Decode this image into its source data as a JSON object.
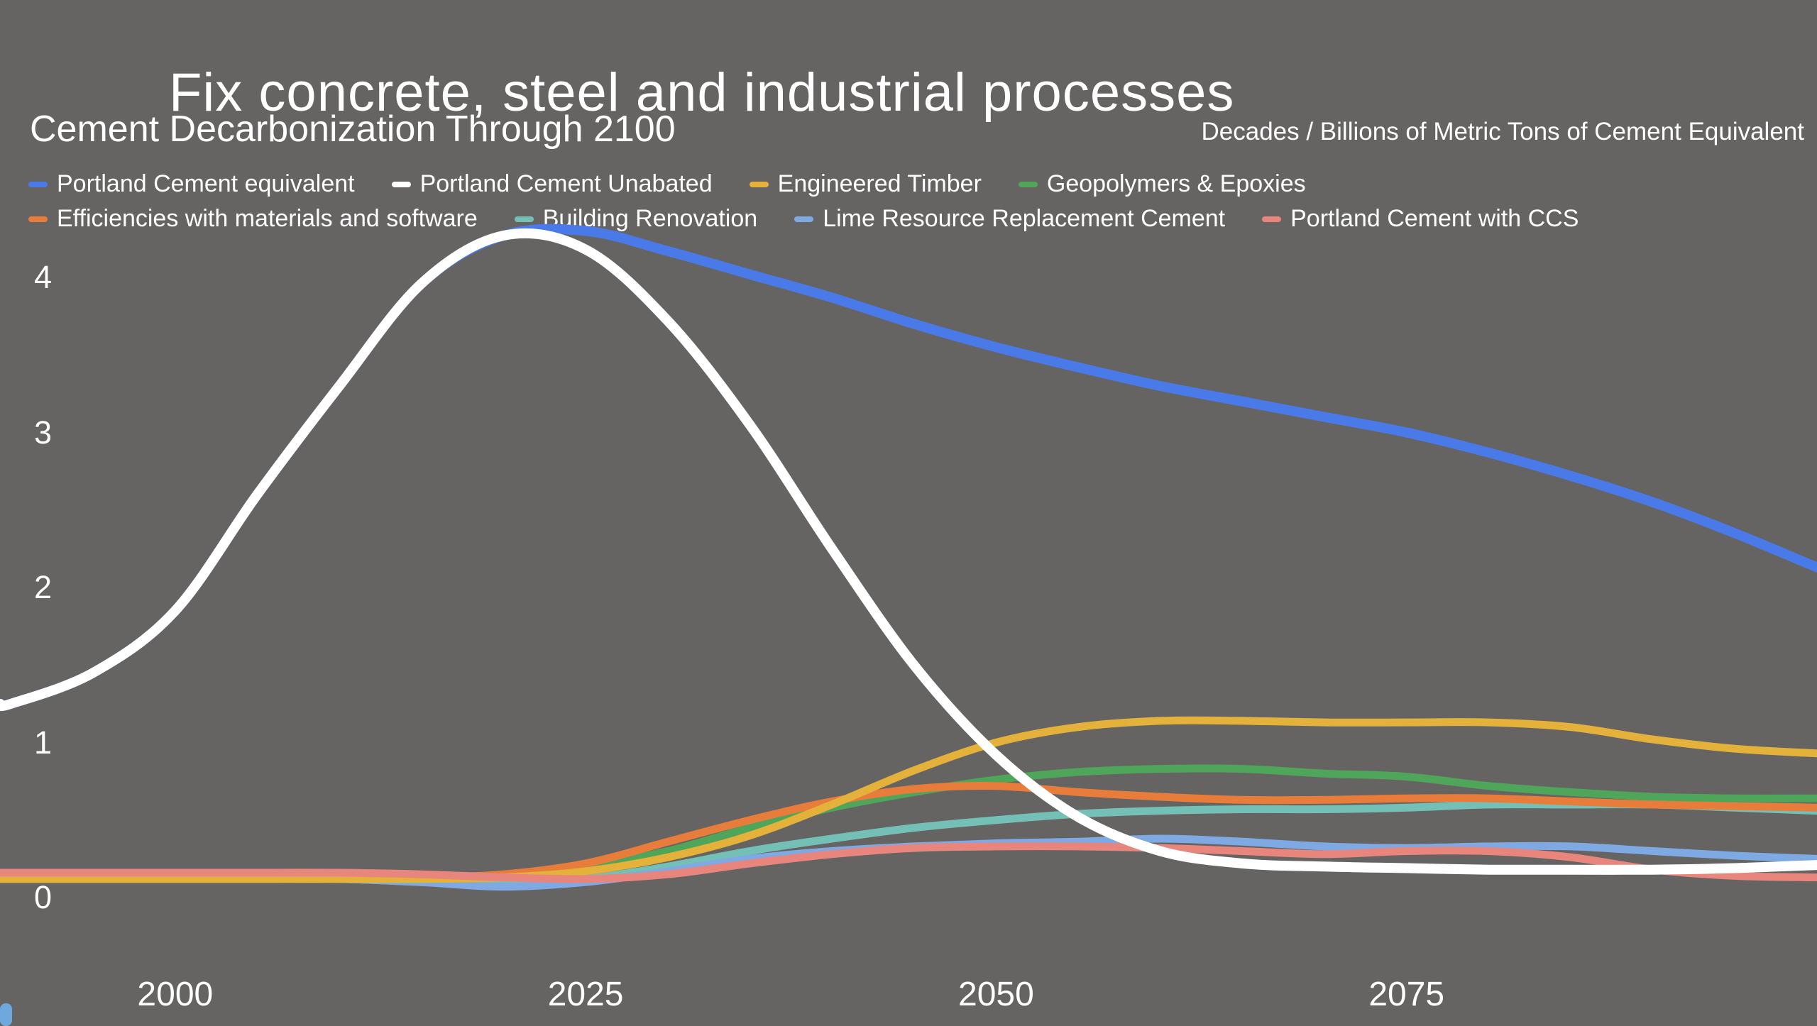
{
  "page": {
    "title": "Fix concrete, steel and industrial processes",
    "background": "#656463",
    "corner_accent_color": "#6FA8DC"
  },
  "chart_header": {
    "title": "Cement Decarbonization Through 2100",
    "axis_note": "Decades / Billions of Metric Tons of Cement Equivalent"
  },
  "chart_data": {
    "type": "line",
    "title": "Cement Decarbonization Through 2100",
    "units_label": "Decades / Billions of Metric Tons of Cement Equivalent",
    "xlabel": "Decades",
    "ylabel": "Billions of Metric Tons of Cement Equivalent",
    "grid": false,
    "legend_position": "top",
    "xlim": [
      1989.33,
      2100
    ],
    "ylim": [
      0,
      4.8
    ],
    "x_ticks": [
      2000,
      2025,
      2050,
      2075
    ],
    "y_ticks": [
      4,
      3,
      2,
      1,
      0
    ],
    "x": [
      1990,
      1995,
      2000,
      2005,
      2010,
      2015,
      2020,
      2025,
      2030,
      2035,
      2040,
      2045,
      2050,
      2055,
      2060,
      2065,
      2070,
      2075,
      2080,
      2085,
      2090,
      2095,
      2100
    ],
    "series": [
      {
        "name": "Portland Cement equivalent",
        "color": "#4A7AE8",
        "width": 14,
        "values": [
          1.25,
          1.45,
          1.85,
          2.6,
          3.3,
          3.96,
          4.27,
          4.3,
          4.17,
          4.02,
          3.87,
          3.7,
          3.55,
          3.42,
          3.3,
          3.2,
          3.1,
          3.0,
          2.87,
          2.72,
          2.55,
          2.35,
          2.13
        ]
      },
      {
        "name": "Portland Cement Unabated",
        "color": "#FFFFFF",
        "width": 14,
        "values": [
          1.25,
          1.45,
          1.85,
          2.6,
          3.3,
          3.96,
          4.27,
          4.18,
          3.72,
          3.05,
          2.25,
          1.5,
          0.92,
          0.52,
          0.3,
          0.22,
          0.2,
          0.19,
          0.18,
          0.18,
          0.18,
          0.19,
          0.21
        ]
      },
      {
        "name": "Engineered Timber",
        "color": "#E4B13B",
        "width": 11,
        "values": [
          0.12,
          0.12,
          0.12,
          0.12,
          0.12,
          0.12,
          0.13,
          0.17,
          0.26,
          0.4,
          0.6,
          0.82,
          1.0,
          1.1,
          1.14,
          1.14,
          1.13,
          1.13,
          1.13,
          1.1,
          1.02,
          0.96,
          0.93
        ]
      },
      {
        "name": "Geopolymers & Epoxies",
        "color": "#4FA55A",
        "width": 11,
        "values": [
          0.12,
          0.12,
          0.12,
          0.12,
          0.12,
          0.12,
          0.13,
          0.2,
          0.3,
          0.45,
          0.58,
          0.68,
          0.76,
          0.81,
          0.83,
          0.83,
          0.8,
          0.78,
          0.72,
          0.68,
          0.65,
          0.64,
          0.64
        ]
      },
      {
        "name": "Efficiencies with materials and software",
        "color": "#E87D3B",
        "width": 11,
        "values": [
          0.13,
          0.13,
          0.13,
          0.13,
          0.13,
          0.13,
          0.15,
          0.22,
          0.36,
          0.5,
          0.62,
          0.7,
          0.72,
          0.68,
          0.65,
          0.63,
          0.63,
          0.64,
          0.64,
          0.62,
          0.6,
          0.59,
          0.58
        ]
      },
      {
        "name": "Building Renovation",
        "color": "#75C0B6",
        "width": 11,
        "values": [
          0.12,
          0.12,
          0.12,
          0.12,
          0.12,
          0.1,
          0.08,
          0.12,
          0.2,
          0.3,
          0.38,
          0.45,
          0.5,
          0.54,
          0.56,
          0.57,
          0.57,
          0.58,
          0.6,
          0.6,
          0.6,
          0.58,
          0.56
        ]
      },
      {
        "name": "Lime Resource Replacement Cement",
        "color": "#7FA9E2",
        "width": 11,
        "values": [
          0.12,
          0.12,
          0.12,
          0.12,
          0.12,
          0.1,
          0.07,
          0.1,
          0.17,
          0.25,
          0.3,
          0.33,
          0.35,
          0.36,
          0.38,
          0.36,
          0.33,
          0.32,
          0.33,
          0.33,
          0.3,
          0.27,
          0.25
        ]
      },
      {
        "name": "Portland Cement with CCS",
        "color": "#E8857D",
        "width": 11,
        "values": [
          0.16,
          0.16,
          0.16,
          0.16,
          0.16,
          0.15,
          0.13,
          0.12,
          0.15,
          0.22,
          0.28,
          0.32,
          0.33,
          0.33,
          0.32,
          0.3,
          0.28,
          0.3,
          0.3,
          0.26,
          0.18,
          0.14,
          0.13
        ]
      }
    ],
    "legend_rows": [
      [
        0,
        1,
        2,
        3
      ],
      [
        4,
        5,
        6,
        7
      ]
    ],
    "draw_order": [
      3,
      5,
      6,
      4,
      2,
      7,
      0,
      1
    ]
  }
}
